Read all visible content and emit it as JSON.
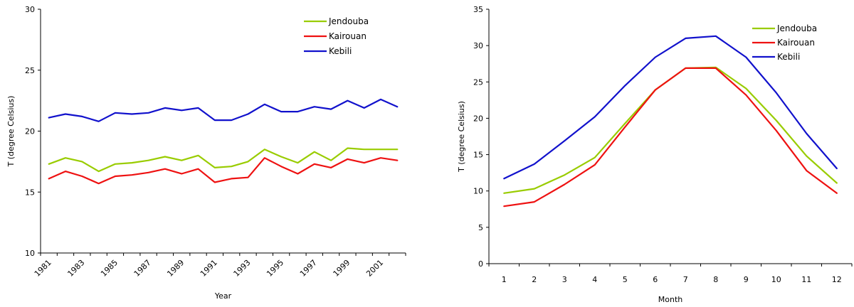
{
  "chart_data": [
    {
      "type": "line",
      "xlabel": "Year",
      "ylabel": "T (degree Celsius)",
      "ylim": [
        10,
        30
      ],
      "yticks": [
        10,
        15,
        20,
        25,
        30
      ],
      "categories": [
        "1981",
        "1982",
        "1983",
        "1984",
        "1985",
        "1986",
        "1987",
        "1988",
        "1989",
        "1990",
        "1991",
        "1992",
        "1993",
        "1994",
        "1995",
        "1996",
        "1997",
        "1998",
        "1999",
        "2000",
        "2001",
        "2002"
      ],
      "tick_labels": [
        "1981",
        "",
        "1983",
        "",
        "1985",
        "",
        "1987",
        "",
        "1989",
        "",
        "1991",
        "",
        "1993",
        "",
        "1995",
        "",
        "1997",
        "",
        "1999",
        "",
        "2001",
        ""
      ],
      "grid": false,
      "legend": "top-right",
      "series": [
        {
          "name": "Jendouba",
          "color": "#99cc00",
          "values": [
            17.3,
            17.8,
            17.5,
            16.7,
            17.3,
            17.4,
            17.6,
            17.9,
            17.6,
            18.0,
            17.0,
            17.1,
            17.5,
            18.5,
            17.9,
            17.4,
            18.3,
            17.6,
            18.6,
            18.5,
            18.5,
            18.5
          ]
        },
        {
          "name": "Kairouan",
          "color": "#ee1111",
          "values": [
            16.1,
            16.7,
            16.3,
            15.7,
            16.3,
            16.4,
            16.6,
            16.9,
            16.5,
            16.9,
            15.8,
            16.1,
            16.2,
            17.8,
            17.1,
            16.5,
            17.3,
            17.0,
            17.7,
            17.4,
            17.8,
            17.6
          ]
        },
        {
          "name": "Kebili",
          "color": "#1111cc",
          "values": [
            21.1,
            21.4,
            21.2,
            20.8,
            21.5,
            21.4,
            21.5,
            21.9,
            21.7,
            21.9,
            20.9,
            20.9,
            21.4,
            22.2,
            21.6,
            21.6,
            22.0,
            21.8,
            22.5,
            21.9,
            22.6,
            22.0
          ]
        }
      ]
    },
    {
      "type": "line",
      "xlabel": "Month",
      "ylabel": "T (degree Celsius)",
      "ylim": [
        0,
        35
      ],
      "yticks": [
        0,
        5,
        10,
        15,
        20,
        25,
        30,
        35
      ],
      "categories": [
        "1",
        "2",
        "3",
        "4",
        "5",
        "6",
        "7",
        "8",
        "9",
        "10",
        "11",
        "12"
      ],
      "tick_labels": [
        "1",
        "2",
        "3",
        "4",
        "5",
        "6",
        "7",
        "8",
        "9",
        "10",
        "11",
        "12"
      ],
      "grid": false,
      "legend": "top-right",
      "series": [
        {
          "name": "Jendouba",
          "color": "#99cc00",
          "values": [
            9.7,
            10.3,
            12.2,
            14.6,
            19.3,
            23.9,
            26.9,
            27.0,
            24.1,
            19.7,
            14.8,
            11.1
          ]
        },
        {
          "name": "Kairouan",
          "color": "#ee1111",
          "values": [
            7.9,
            8.5,
            10.9,
            13.6,
            18.8,
            23.9,
            26.9,
            26.9,
            23.2,
            18.3,
            12.8,
            9.7
          ]
        },
        {
          "name": "Kebili",
          "color": "#1111cc",
          "values": [
            11.7,
            13.7,
            16.9,
            20.2,
            24.5,
            28.4,
            31.0,
            31.3,
            28.4,
            23.5,
            17.9,
            13.1
          ]
        }
      ]
    }
  ]
}
